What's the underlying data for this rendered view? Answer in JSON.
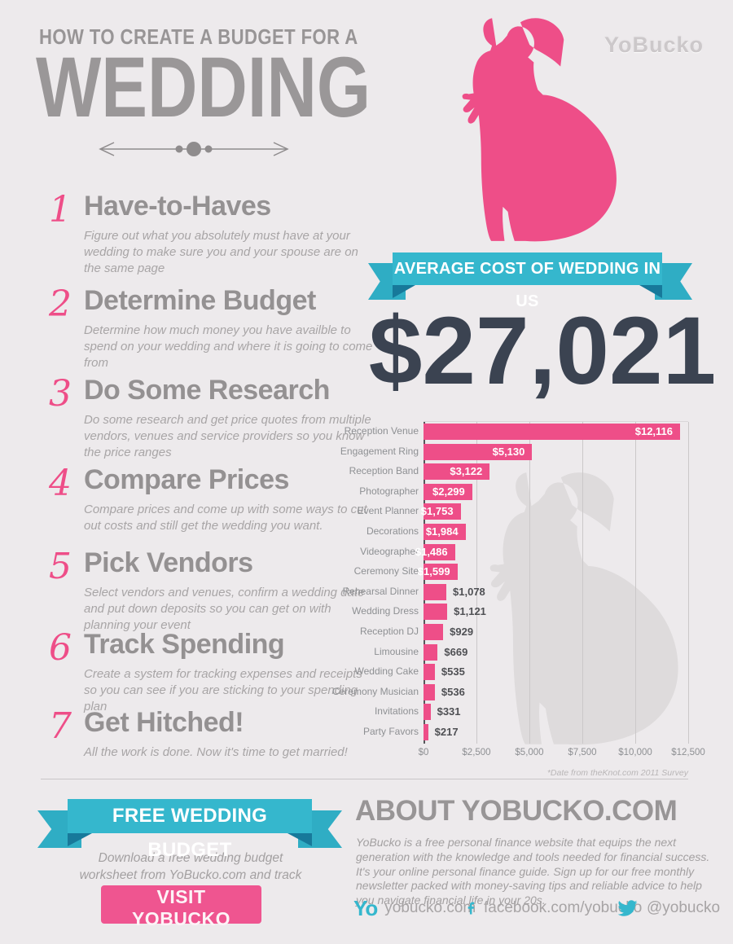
{
  "colors": {
    "background": "#edeaec",
    "pink": "#ee4e88",
    "teal": "#35b7cd",
    "teal_dark": "#17799a",
    "slate": "#3b4351",
    "gray_heading": "#979495"
  },
  "header": {
    "kicker": "HOW TO CREATE A BUDGET FOR A",
    "title": "WEDDING",
    "logo": "YoBucko"
  },
  "steps": [
    {
      "num": "1",
      "title": "Have-to-Haves",
      "desc": "Figure out what you absolutely must have at your wedding to make sure you and your spouse are on the same page"
    },
    {
      "num": "2",
      "title": "Determine Budget",
      "desc": "Determine how much money you have availble to spend on your wedding and where it is going to come from"
    },
    {
      "num": "3",
      "title": "Do Some Research",
      "desc": "Do some research and get price quotes from multiple vendors, venues and service providers so you know the price ranges"
    },
    {
      "num": "4",
      "title": "Compare Prices",
      "desc": "Compare prices and come up with some ways to cut out costs and still get the wedding you want."
    },
    {
      "num": "5",
      "title": "Pick Vendors",
      "desc": "Select vendors and venues, confirm a wedding date and put down deposits so you can get on with planning your event"
    },
    {
      "num": "6",
      "title": "Track Spending",
      "desc": "Create a system for tracking expenses and receipts so you can see if you are sticking to your spending plan"
    },
    {
      "num": "7",
      "title": "Get Hitched!",
      "desc": "All the work is done. Now it's time to get married!"
    }
  ],
  "stat": {
    "banner": "AVERAGE COST OF WEDDING IN US",
    "amount": "$27,021"
  },
  "chart_data": {
    "type": "bar",
    "orientation": "horizontal",
    "categories": [
      "Reception Venue",
      "Engagement Ring",
      "Reception Band",
      "Photographer",
      "Event Planner",
      "Decorations",
      "Videographer",
      "Ceremony Site",
      "Rehearsal Dinner",
      "Wedding Dress",
      "Reception DJ",
      "Limousine",
      "Wedding Cake",
      "Ceremony Musician",
      "Invitations",
      "Party Favors"
    ],
    "values": [
      12116,
      5130,
      3122,
      2299,
      1753,
      1984,
      1486,
      1599,
      1078,
      1121,
      929,
      669,
      535,
      536,
      331,
      217
    ],
    "value_labels": [
      "$12,116",
      "$5,130",
      "$3,122",
      "$2,299",
      "$1,753",
      "$1,984",
      "$1,486",
      "$1,599",
      "$1,078",
      "$1,121",
      "$929",
      "$669",
      "$535",
      "$536",
      "$331",
      "$217"
    ],
    "xticks": [
      "$0",
      "$2,500",
      "$5,000",
      "$7,500",
      "$10,000",
      "$12,500"
    ],
    "xtick_values": [
      0,
      2500,
      5000,
      7500,
      10000,
      12500
    ],
    "xlim": [
      0,
      12500
    ],
    "bar_color": "#ee4e88",
    "grid": true,
    "footnote": "*Date from theKnot.com 2011 Survey"
  },
  "footer": {
    "ribbon": "FREE WEDDING BUDGET",
    "download_text": "Download a free wedding budget worksheet from YoBucko.com and track your wedding expenses.",
    "button": "VISIT YOBUCKO",
    "about_title": "ABOUT YOBUCKO.COM",
    "about_text": "YoBucko is a free personal finance website that equips the next generation with the knowledge and tools needed for financial success.  It's your online personal finance guide.  Sign up for our free monthly newsletter packed with money-saving tips and reliable advice to help you navigate financial life in your 20s.",
    "social": [
      {
        "icon": "yo-logo-icon",
        "label": "yobucko.com"
      },
      {
        "icon": "facebook-icon",
        "label": "facebook.com/yobucko"
      },
      {
        "icon": "twitter-icon",
        "label": "@yobucko"
      }
    ]
  }
}
